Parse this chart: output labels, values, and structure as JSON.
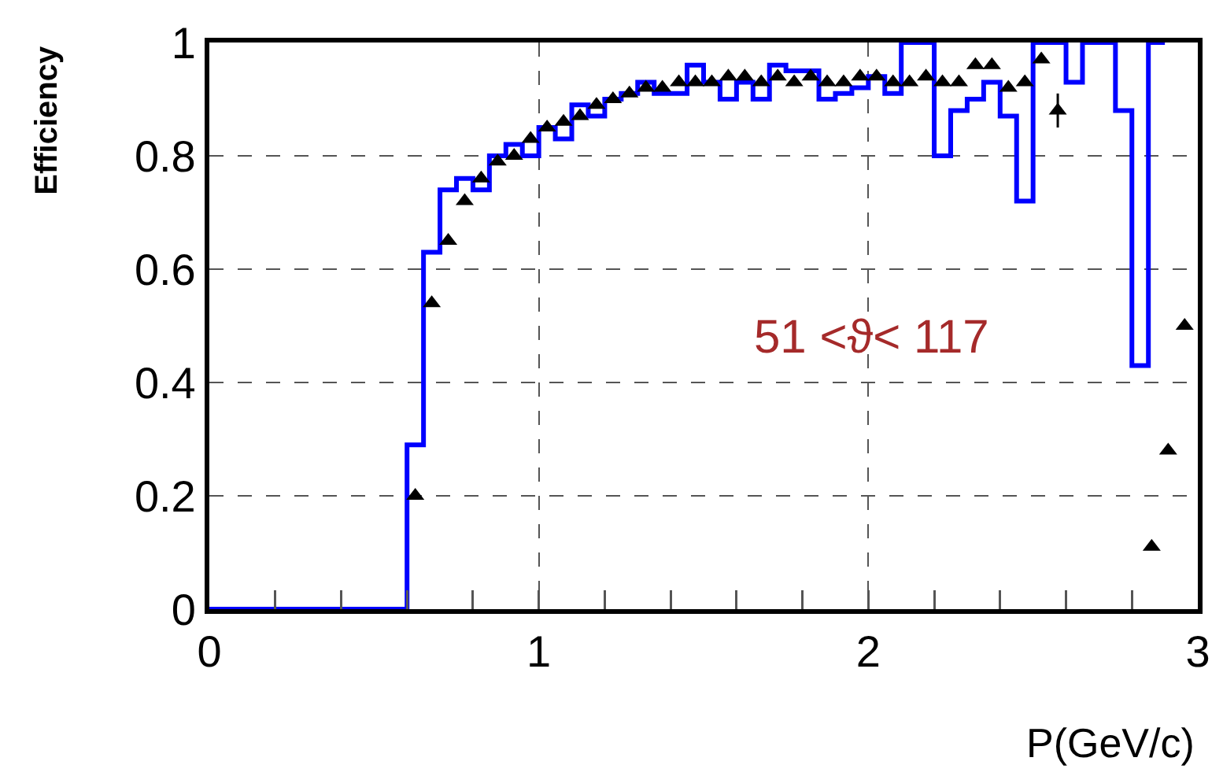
{
  "chart_data": {
    "type": "step",
    "xlabel": "P(GeV/c)",
    "ylabel": "Efficiency",
    "annotations": [
      "51 <ϑ< 117"
    ],
    "xlim": [
      0,
      3
    ],
    "xticks": [
      0,
      1,
      2,
      3
    ],
    "ylim": [
      0,
      1
    ],
    "yticks": [
      0,
      0.2,
      0.4,
      0.6,
      0.8,
      1
    ],
    "grid": true,
    "series": [
      {
        "color": "#0000ff",
        "x": [
          0,
          0.6,
          0.65,
          0.7,
          0.75,
          0.8,
          0.85,
          0.9,
          0.95,
          1.0,
          1.05,
          1.1,
          1.15,
          1.2,
          1.25,
          1.3,
          1.35,
          1.4,
          1.45,
          1.5,
          1.55,
          1.6,
          1.65,
          1.7,
          1.75,
          1.8,
          1.85,
          1.9,
          1.95,
          2.0,
          2.05,
          2.1,
          2.15,
          2.2,
          2.25,
          2.3,
          2.35,
          2.4,
          2.45,
          2.5,
          2.55,
          2.6,
          2.65,
          2.7,
          2.75,
          2.8,
          2.85,
          2.9
        ],
        "values": [
          0,
          0.29,
          0.63,
          0.74,
          0.76,
          0.74,
          0.8,
          0.82,
          0.8,
          0.85,
          0.83,
          0.89,
          0.87,
          0.9,
          0.91,
          0.93,
          0.91,
          0.91,
          0.96,
          0.93,
          0.9,
          0.93,
          0.9,
          0.96,
          0.95,
          0.95,
          0.9,
          0.91,
          0.92,
          0.94,
          0.91,
          1,
          1,
          0.8,
          0.88,
          0.9,
          0.93,
          0.87,
          0.72,
          1,
          1,
          0.93,
          1,
          1,
          0.88,
          0.43,
          1,
          1
        ]
      },
      {
        "type": "scatter",
        "color": "#000000",
        "marker": "triangle",
        "x": [
          0.625,
          0.675,
          0.725,
          0.775,
          0.825,
          0.875,
          0.925,
          0.975,
          1.025,
          1.075,
          1.125,
          1.175,
          1.225,
          1.275,
          1.325,
          1.375,
          1.425,
          1.475,
          1.525,
          1.575,
          1.625,
          1.675,
          1.725,
          1.775,
          1.825,
          1.875,
          1.925,
          1.975,
          2.025,
          2.075,
          2.125,
          2.175,
          2.225,
          2.275,
          2.325,
          2.375,
          2.425,
          2.475,
          2.525,
          2.575,
          2.86,
          2.91,
          2.96
        ],
        "values": [
          0.2,
          0.54,
          0.65,
          0.72,
          0.76,
          0.79,
          0.8,
          0.83,
          0.85,
          0.86,
          0.87,
          0.89,
          0.9,
          0.91,
          0.92,
          0.92,
          0.93,
          0.93,
          0.93,
          0.94,
          0.94,
          0.93,
          0.94,
          0.93,
          0.94,
          0.93,
          0.93,
          0.94,
          0.94,
          0.93,
          0.93,
          0.94,
          0.93,
          0.93,
          0.96,
          0.96,
          0.92,
          0.93,
          0.97,
          0.88,
          0.11,
          0.28,
          0.5
        ],
        "errors": [
          null,
          null,
          null,
          null,
          null,
          null,
          null,
          null,
          null,
          null,
          null,
          null,
          null,
          null,
          null,
          null,
          null,
          null,
          null,
          null,
          null,
          null,
          null,
          null,
          null,
          null,
          null,
          null,
          null,
          null,
          null,
          null,
          null,
          null,
          null,
          null,
          null,
          null,
          null,
          0.03,
          null,
          null,
          null
        ]
      }
    ]
  }
}
